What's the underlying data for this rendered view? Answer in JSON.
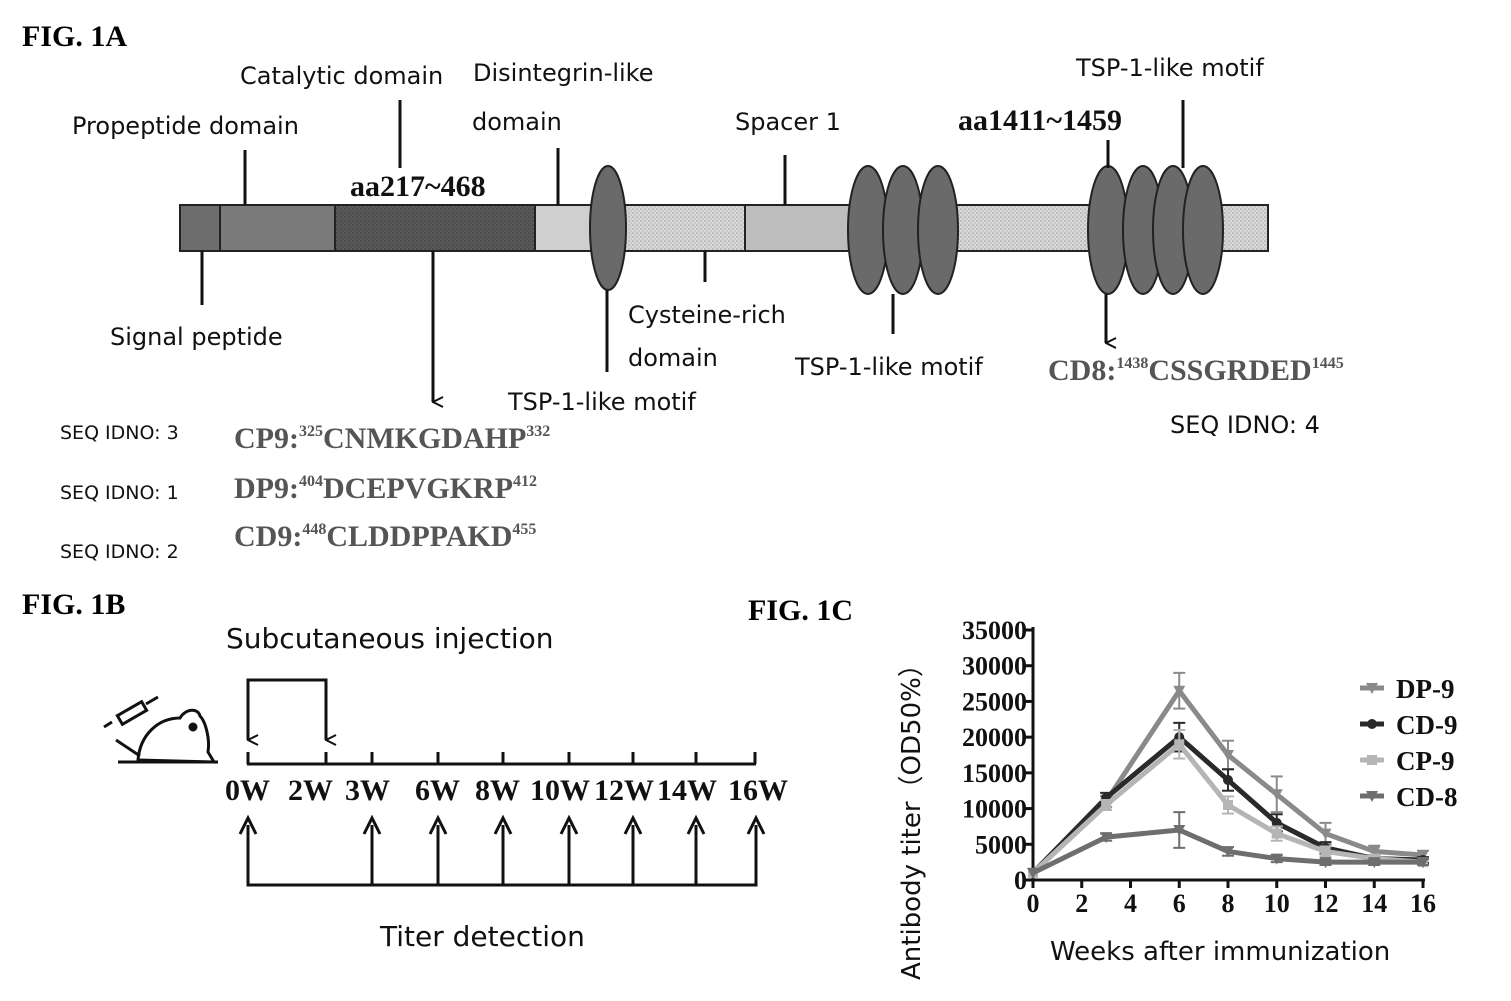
{
  "fig1a": {
    "label": "FIG. 1A",
    "domains": {
      "propeptide": "Propeptide domain",
      "catalytic": "Catalytic domain",
      "disintegrin_1": "Disintegrin-like",
      "disintegrin_2": "domain",
      "spacer": "Spacer 1",
      "tsp_top": "TSP-1-like motif",
      "signal": "Signal peptide",
      "cysteine_1": "Cysteine-rich",
      "cysteine_2": "domain",
      "tsp_mid": "TSP-1-like motif",
      "tsp_right": "TSP-1-like motif"
    },
    "ranges": {
      "catalytic": "aa217~468",
      "tsp": "aa1411~1459"
    },
    "peptides": [
      {
        "seq_id": "SEQ IDNO: 3",
        "name": "CP9:",
        "start": "325",
        "sequence": "CNMKGDAHP",
        "end": "332"
      },
      {
        "seq_id": "SEQ IDNO: 1",
        "name": "DP9:",
        "start": "404",
        "sequence": "DCEPVGKRP",
        "end": "412"
      },
      {
        "seq_id": "SEQ IDNO: 2",
        "name": "CD9:",
        "start": "448",
        "sequence": "CLDDPPAKD",
        "end": "455"
      }
    ],
    "peptide_cd8": {
      "seq_id": "SEQ IDNO: 4",
      "name": "CD8:",
      "start": "1438",
      "sequence": "CSSGRDED",
      "end": "1445"
    }
  },
  "fig1b": {
    "label": "FIG. 1B",
    "injection": "Subcutaneous injection",
    "titer": "Titer detection",
    "weeks": [
      "0W",
      "2W",
      "3W",
      "6W",
      "8W",
      "10W",
      "12W",
      "14W",
      "16W"
    ],
    "mouse_icon": "mouse-syringe-icon"
  },
  "fig1c": {
    "label": "FIG. 1C"
  },
  "chart_data": {
    "type": "line",
    "title": "",
    "xlabel": "Weeks after immunization",
    "ylabel": "Antibody titer（OD50%）",
    "xlim": [
      0,
      16
    ],
    "ylim": [
      0,
      35000
    ],
    "xticks": [
      "0",
      "2",
      "4",
      "6",
      "8",
      "10",
      "12",
      "14",
      "16"
    ],
    "yticks": [
      "0",
      "5000",
      "10000",
      "15000",
      "20000",
      "25000",
      "30000",
      "35000"
    ],
    "legend_position": "right",
    "series": [
      {
        "name": "DP-9",
        "color": "#8a8a8a",
        "marker": "triangle-down",
        "x": [
          0,
          3,
          6,
          8,
          10,
          12,
          14,
          16
        ],
        "y": [
          1000,
          11000,
          26500,
          17500,
          12000,
          6500,
          4000,
          3500
        ],
        "err": [
          0,
          800,
          2500,
          2000,
          2500,
          1500,
          800,
          600
        ]
      },
      {
        "name": "CD-9",
        "color": "#2a2a2a",
        "marker": "circle",
        "x": [
          0,
          3,
          6,
          8,
          10,
          12,
          14,
          16
        ],
        "y": [
          1000,
          11500,
          20000,
          14000,
          8000,
          4500,
          3000,
          2800
        ],
        "err": [
          0,
          700,
          2000,
          1500,
          1200,
          800,
          500,
          400
        ]
      },
      {
        "name": "CP-9",
        "color": "#b5b5b5",
        "marker": "square",
        "x": [
          0,
          3,
          6,
          8,
          10,
          12,
          14,
          16
        ],
        "y": [
          1000,
          10500,
          19000,
          10500,
          6500,
          4000,
          3000,
          2500
        ],
        "err": [
          0,
          700,
          2000,
          1200,
          1000,
          700,
          500,
          400
        ]
      },
      {
        "name": "CD-8",
        "color": "#6e6e6e",
        "marker": "triangle-down",
        "x": [
          0,
          3,
          6,
          8,
          10,
          12,
          14,
          16
        ],
        "y": [
          1000,
          6000,
          7000,
          4000,
          3000,
          2500,
          2500,
          2500
        ],
        "err": [
          0,
          500,
          2500,
          600,
          500,
          400,
          400,
          400
        ]
      }
    ]
  }
}
